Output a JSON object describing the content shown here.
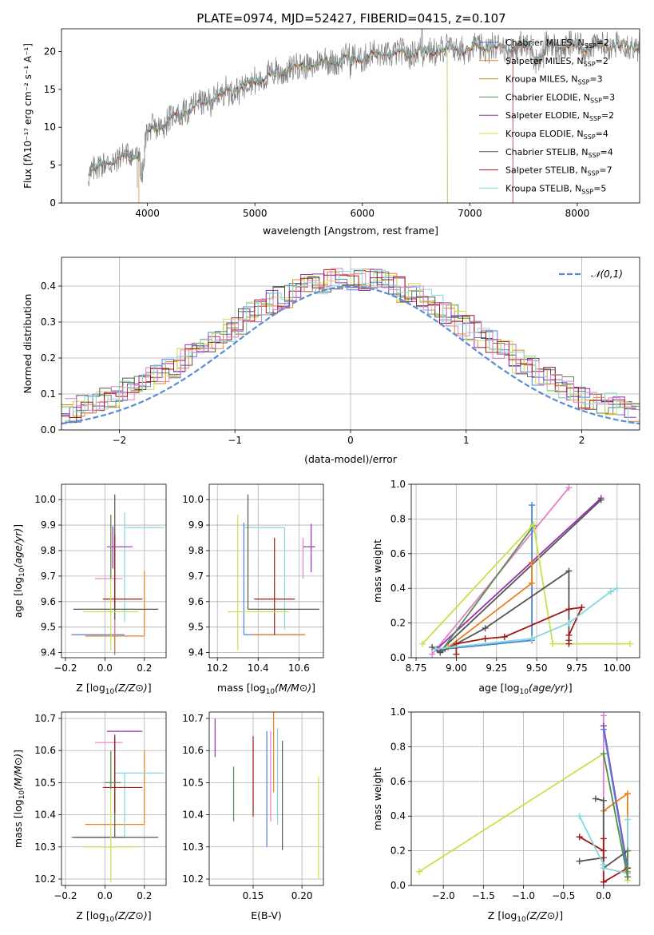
{
  "figure": {
    "title": "PLATE=0974, MJD=52427, FIBERID=0415, z=0.107"
  },
  "colors": {
    "MILES_Chabrier": "#4f81d8",
    "MILES_Salpeter": "#e8821e",
    "MILES_Kroupa": "#e8821e",
    "ELODIE_Chabrier": "#5a8a55",
    "ELODIE_Salpeter": "#9a2fb0",
    "ELODIE_Kroupa": "#c9e04a",
    "STELIB_Chabrier": "#555555",
    "STELIB_Salpeter": "#a01818",
    "STELIB_Kroupa": "#85d8dc",
    "extra_pink": "#e080c8",
    "normal_curve": "#5b8bd8"
  },
  "chart_data": [
    {
      "id": "spectrum",
      "type": "line",
      "xlabel": "wavelength [Angstrom, rest frame]",
      "ylabel": "Flux [fλ10⁻¹⁷ erg cm⁻² s⁻¹ A⁻¹]",
      "xlim": [
        3200,
        8580
      ],
      "ylim": [
        0,
        23
      ],
      "xticks": [
        4000,
        5000,
        6000,
        7000,
        8000
      ],
      "yticks": [
        0,
        5,
        10,
        15,
        20
      ],
      "legend_position": "top-right",
      "continuum_x": [
        3450,
        3600,
        3800,
        3950,
        4000,
        4200,
        4400,
        4600,
        4800,
        5000,
        5200,
        5400,
        5600,
        5800,
        6000,
        6200,
        6400,
        6600,
        6800,
        7000,
        7200,
        7400,
        7600,
        7800,
        8000,
        8200,
        8400,
        8580
      ],
      "continuum_y": [
        3.8,
        5.2,
        6.2,
        6.8,
        9.3,
        11.0,
        12.5,
        13.8,
        14.9,
        16.2,
        17.2,
        17.9,
        18.5,
        18.9,
        19.2,
        19.6,
        19.9,
        20.1,
        20.3,
        20.4,
        20.5,
        20.5,
        20.6,
        20.6,
        20.7,
        20.7,
        20.8,
        20.8
      ],
      "series": [
        {
          "name": "Chabrier MILES, N_SSP=2",
          "label_main": "Chabrier MILES, N",
          "label_sub": "SSP",
          "label_end": "=2",
          "color": "#4f81d8"
        },
        {
          "name": "Salpeter MILES, N_SSP=2",
          "label_main": "Salpeter MILES, N",
          "label_sub": "SSP",
          "label_end": "=2",
          "color": "#e8821e"
        },
        {
          "name": "Kroupa MILES, N_SSP=3",
          "label_main": "Kroupa MILES, N",
          "label_sub": "SSP",
          "label_end": "=3",
          "color": "#c88a2e"
        },
        {
          "name": "Chabrier ELODIE, N_SSP=3",
          "label_main": "Chabrier ELODIE, N",
          "label_sub": "SSP",
          "label_end": "=3",
          "color": "#5a8a55"
        },
        {
          "name": "Salpeter ELODIE, N_SSP=2",
          "label_main": "Salpeter ELODIE, N",
          "label_sub": "SSP",
          "label_end": "=2",
          "color": "#9a2fb0"
        },
        {
          "name": "Kroupa ELODIE, N_SSP=4",
          "label_main": "Kroupa ELODIE, N",
          "label_sub": "SSP",
          "label_end": "=4",
          "color": "#c9e04a"
        },
        {
          "name": "Chabrier STELIB, N_SSP=4",
          "label_main": "Chabrier STELIB, N",
          "label_sub": "SSP",
          "label_end": "=4",
          "color": "#555555"
        },
        {
          "name": "Salpeter STELIB, N_SSP=7",
          "label_main": "Salpeter STELIB, N",
          "label_sub": "SSP",
          "label_end": "=7",
          "color": "#a01818"
        },
        {
          "name": "Kroupa STELIB, N_SSP=5",
          "label_main": "Kroupa STELIB, N",
          "label_sub": "SSP",
          "label_end": "=5",
          "color": "#85d8dc"
        }
      ]
    },
    {
      "id": "residuals",
      "type": "line",
      "xlabel": "(data-model)/error",
      "ylabel": "Normed distribution",
      "xlim": [
        -2.5,
        2.5
      ],
      "ylim": [
        0,
        0.48
      ],
      "xticks": [
        -2,
        -1,
        0,
        1,
        2
      ],
      "yticks": [
        0.0,
        0.1,
        0.2,
        0.3,
        0.4
      ],
      "grid": true,
      "legend_position": "top-right",
      "legend": [
        {
          "text": "𝒩(0,1)",
          "color": "#5b8bd8",
          "style": "dashed"
        }
      ],
      "bin_width": 0.1
    },
    {
      "id": "age_vs_Z",
      "type": "scatter",
      "xlabel": "Z [log10(Z/Z⊙)]",
      "ylabel": "age  [log10(age/yr)]",
      "xlim": [
        -0.22,
        0.31
      ],
      "ylim": [
        9.38,
        10.06
      ],
      "xticks": [
        -0.2,
        0.0,
        0.2
      ],
      "yticks": [
        9.4,
        9.5,
        9.6,
        9.7,
        9.8,
        9.9,
        10.0
      ],
      "grid": true,
      "points": [
        {
          "x": 0.05,
          "y": 9.47,
          "xerr": [
            0.22,
            0.05
          ],
          "yerr": [
            0.08,
            0.07
          ],
          "color": "#4f81d8"
        },
        {
          "x": 0.05,
          "y": 9.465,
          "xerr": [
            0.15,
            0.15
          ],
          "yerr": [
            0.06,
            0.06
          ],
          "color": "#e8821e"
        },
        {
          "x": 0.2,
          "y": 9.62,
          "xerr": [
            0.0,
            0.0
          ],
          "yerr": [
            0.155,
            0.1
          ],
          "color": "#e8821e"
        },
        {
          "x": 0.05,
          "y": 9.69,
          "xerr": [
            0.1,
            0.04
          ],
          "yerr": [
            0.22,
            0.2
          ],
          "color": "#e080c8"
        },
        {
          "x": 0.1,
          "y": 9.89,
          "xerr": [
            0.0,
            0.2
          ],
          "yerr": [
            0.37,
            0.06
          ],
          "color": "#85d8dc"
        },
        {
          "x": 0.05,
          "y": 9.57,
          "xerr": [
            0.21,
            0.22
          ],
          "yerr": [
            0.04,
            0.45
          ],
          "color": "#555555"
        },
        {
          "x": 0.05,
          "y": 9.61,
          "xerr": [
            0.06,
            0.14
          ],
          "yerr": [
            0.04,
            0.25
          ],
          "color": "#a01818"
        },
        {
          "x": 0.04,
          "y": 9.815,
          "xerr": [
            0.03,
            0.1
          ],
          "yerr": [
            0.085,
            0.08
          ],
          "color": "#9a2fb0"
        },
        {
          "x": 0.03,
          "y": 9.56,
          "xerr": [
            0.14,
            0.14
          ],
          "yerr": [
            0.15,
            0.38
          ],
          "color": "#c9e04a"
        },
        {
          "x": 0.03,
          "y": 9.74,
          "xerr": [
            0.0,
            0.0
          ],
          "yerr": [
            0.05,
            0.2
          ],
          "color": "#5a8a55"
        }
      ]
    },
    {
      "id": "age_vs_mass",
      "type": "scatter",
      "xlabel": "mass [log10(M/M⊙)]",
      "ylabel": "",
      "xlim": [
        10.16,
        10.72
      ],
      "ylim": [
        9.38,
        10.06
      ],
      "xticks": [
        10.2,
        10.4,
        10.6
      ],
      "yticks": [
        9.4,
        9.5,
        9.6,
        9.7,
        9.8,
        9.9,
        10.0
      ],
      "grid": true,
      "points": [
        {
          "x": 10.33,
          "y": 9.47,
          "xerr": [
            0.0,
            0.3
          ],
          "yerr": [
            0.0,
            0.44
          ],
          "color": "#4f81d8"
        },
        {
          "x": 10.5,
          "y": 9.47,
          "xerr": [
            0.13,
            0.13
          ],
          "yerr": [
            0.0,
            0.0
          ],
          "color": "#e8821e"
        },
        {
          "x": 10.53,
          "y": 9.89,
          "xerr": [
            0.2,
            0.0
          ],
          "yerr": [
            0.4,
            0.0
          ],
          "color": "#85d8dc"
        },
        {
          "x": 10.35,
          "y": 9.57,
          "xerr": [
            0.0,
            0.35
          ],
          "yerr": [
            0.0,
            0.45
          ],
          "color": "#555555"
        },
        {
          "x": 10.48,
          "y": 9.61,
          "xerr": [
            0.1,
            0.1
          ],
          "yerr": [
            0.14,
            0.24
          ],
          "color": "#a01818"
        },
        {
          "x": 10.66,
          "y": 9.815,
          "xerr": [
            0.04,
            0.02
          ],
          "yerr": [
            0.1,
            0.09
          ],
          "color": "#9a2fb0"
        },
        {
          "x": 10.3,
          "y": 9.56,
          "xerr": [
            0.05,
            0.25
          ],
          "yerr": [
            0.15,
            0.38
          ],
          "color": "#c9e04a"
        },
        {
          "x": 10.62,
          "y": 9.75,
          "xerr": [
            0.0,
            0.0
          ],
          "yerr": [
            0.06,
            0.1
          ],
          "color": "#e080c8"
        }
      ]
    },
    {
      "id": "mass_weight_vs_age",
      "type": "line",
      "xlabel": "age  [log10(age/yr)]",
      "ylabel": "mass weight",
      "xlim": [
        8.72,
        10.14
      ],
      "ylim": [
        0,
        1.0
      ],
      "xticks": [
        8.75,
        9.0,
        9.25,
        9.5,
        9.75,
        10.0
      ],
      "yticks": [
        0.0,
        0.2,
        0.4,
        0.6,
        0.8,
        1.0
      ],
      "grid": true,
      "series": [
        {
          "color": "#e080c8",
          "x": [
            8.85,
            9.7
          ],
          "y": [
            0.02,
            0.98
          ]
        },
        {
          "color": "#9a2fb0",
          "x": [
            8.88,
            9.9
          ],
          "y": [
            0.05,
            0.92
          ]
        },
        {
          "color": "#555555",
          "x": [
            8.9,
            9.9
          ],
          "y": [
            0.04,
            0.91
          ]
        },
        {
          "color": "#5a8a55",
          "x": [
            8.9,
            9.48
          ],
          "y": [
            0.03,
            0.76
          ]
        },
        {
          "color": "#4f81d8",
          "x": [
            8.93,
            9.47,
            9.47
          ],
          "y": [
            0.05,
            0.1,
            0.88
          ]
        },
        {
          "color": "#e8821e",
          "x": [
            8.95,
            9.47,
            9.47
          ],
          "y": [
            0.06,
            0.43,
            0.55
          ]
        },
        {
          "color": "#c9e04a",
          "x": [
            8.79,
            9.48,
            9.6,
            10.08
          ],
          "y": [
            0.08,
            0.77,
            0.08,
            0.08
          ]
        },
        {
          "color": "#555555",
          "x": [
            8.85,
            8.9,
            9.18,
            9.7,
            9.7
          ],
          "y": [
            0.06,
            0.03,
            0.17,
            0.5,
            0.1
          ]
        },
        {
          "color": "#a01818",
          "x": [
            9.0,
            9.0,
            9.18,
            9.3,
            9.7,
            9.78,
            9.7,
            9.7
          ],
          "y": [
            0.02,
            0.08,
            0.11,
            0.12,
            0.28,
            0.29,
            0.13,
            0.08
          ]
        },
        {
          "color": "#85d8dc",
          "x": [
            8.87,
            9.47,
            9.7,
            9.96,
            10.0
          ],
          "y": [
            0.05,
            0.11,
            0.2,
            0.38,
            0.4
          ]
        }
      ]
    },
    {
      "id": "mass_vs_Z",
      "type": "scatter",
      "xlabel": "Z [log10(Z/Z⊙)]",
      "ylabel": "mass [log10(M/M⊙)]",
      "xlim": [
        -0.22,
        0.31
      ],
      "ylim": [
        10.18,
        10.72
      ],
      "xticks": [
        -0.2,
        0.0,
        0.2
      ],
      "yticks": [
        10.2,
        10.3,
        10.4,
        10.5,
        10.6,
        10.7
      ],
      "grid": true,
      "points": [
        {
          "x": 0.05,
          "y": 10.33,
          "xerr": [
            0.22,
            0.05
          ],
          "yerr": [
            0.0,
            0.0
          ],
          "color": "#4f81d8"
        },
        {
          "x": 0.05,
          "y": 10.37,
          "xerr": [
            0.15,
            0.15
          ],
          "yerr": [
            0.0,
            0.0
          ],
          "color": "#e8821e"
        },
        {
          "x": 0.2,
          "y": 10.5,
          "xerr": [
            0.0,
            0.0
          ],
          "yerr": [
            0.13,
            0.1
          ],
          "color": "#e8821e"
        },
        {
          "x": 0.05,
          "y": 10.625,
          "xerr": [
            0.1,
            0.04
          ],
          "yerr": [
            0.0,
            0.0
          ],
          "color": "#e080c8"
        },
        {
          "x": 0.1,
          "y": 10.53,
          "xerr": [
            0.05,
            0.2
          ],
          "yerr": [
            0.2,
            0.0
          ],
          "color": "#85d8dc"
        },
        {
          "x": 0.05,
          "y": 10.33,
          "xerr": [
            0.21,
            0.22
          ],
          "yerr": [
            0.0,
            0.32
          ],
          "color": "#555555"
        },
        {
          "x": 0.05,
          "y": 10.485,
          "xerr": [
            0.06,
            0.14
          ],
          "yerr": [
            0.08,
            0.16
          ],
          "color": "#a01818"
        },
        {
          "x": 0.04,
          "y": 10.66,
          "xerr": [
            0.03,
            0.15
          ],
          "yerr": [
            0.0,
            0.0
          ],
          "color": "#9a2fb0"
        },
        {
          "x": 0.03,
          "y": 10.3,
          "xerr": [
            0.14,
            0.14
          ],
          "yerr": [
            0.11,
            0.3
          ],
          "color": "#c9e04a"
        },
        {
          "x": 0.03,
          "y": 10.5,
          "xerr": [
            0.03,
            0.05
          ],
          "yerr": [
            0.02,
            0.1
          ],
          "color": "#5a8a55"
        }
      ]
    },
    {
      "id": "mass_vs_ebv",
      "type": "scatter",
      "xlabel": "E(B-V)",
      "ylabel": "",
      "xlim": [
        0.105,
        0.222
      ],
      "ylim": [
        10.18,
        10.72
      ],
      "xticks": [
        0.15,
        0.2
      ],
      "yticks": [
        10.2,
        10.3,
        10.4,
        10.5,
        10.6,
        10.7
      ],
      "grid": true,
      "points": [
        {
          "x": 0.111,
          "y": 10.64,
          "yerr": [
            0.06,
            0.06
          ],
          "color": "#9a2fb0"
        },
        {
          "x": 0.13,
          "y": 10.465,
          "yerr": [
            0.085,
            0.085
          ],
          "color": "#5a8a55"
        },
        {
          "x": 0.15,
          "y": 10.52,
          "yerr": [
            0.125,
            0.125
          ],
          "color": "#a01818"
        },
        {
          "x": 0.164,
          "y": 10.48,
          "yerr": [
            0.18,
            0.18
          ],
          "color": "#4f81d8"
        },
        {
          "x": 0.168,
          "y": 10.52,
          "yerr": [
            0.14,
            0.14
          ],
          "color": "#e080c8"
        },
        {
          "x": 0.171,
          "y": 10.57,
          "yerr": [
            0.1,
            0.2
          ],
          "color": "#e8821e"
        },
        {
          "x": 0.175,
          "y": 10.52,
          "yerr": [
            0.15,
            0.15
          ],
          "color": "#85d8dc"
        },
        {
          "x": 0.18,
          "y": 10.46,
          "yerr": [
            0.17,
            0.17
          ],
          "color": "#555555"
        },
        {
          "x": 0.217,
          "y": 10.36,
          "yerr": [
            0.16,
            0.16
          ],
          "color": "#c9e04a"
        }
      ]
    },
    {
      "id": "mass_weight_vs_Z",
      "type": "line",
      "xlabel": "Z [log10(Z/Z⊙)]",
      "ylabel": "mass weight",
      "xlim": [
        -2.4,
        0.45
      ],
      "ylim": [
        0,
        1.0
      ],
      "xticks": [
        -2.0,
        -1.5,
        -1.0,
        -0.5,
        0.0
      ],
      "yticks": [
        0.0,
        0.2,
        0.4,
        0.6,
        0.8,
        1.0
      ],
      "grid": true,
      "series": [
        {
          "color": "#c9e04a",
          "x": [
            -2.3,
            0.0,
            0.3,
            0.3
          ],
          "y": [
            0.08,
            0.76,
            0.05,
            0.03
          ]
        },
        {
          "color": "#e080c8",
          "x": [
            0.0,
            0.0
          ],
          "y": [
            0.02,
            0.98
          ]
        },
        {
          "color": "#9a2fb0",
          "x": [
            0.0,
            0.3
          ],
          "y": [
            0.92,
            0.1
          ]
        },
        {
          "color": "#4f81d8",
          "x": [
            0.0,
            0.3
          ],
          "y": [
            0.9,
            0.08
          ]
        },
        {
          "color": "#e8821e",
          "x": [
            0.0,
            0.3,
            0.3
          ],
          "y": [
            0.43,
            0.53,
            0.08
          ]
        },
        {
          "color": "#555555",
          "x": [
            -0.1,
            0.0,
            0.0,
            0.3,
            0.3
          ],
          "y": [
            0.5,
            0.49,
            0.1,
            0.2,
            0.1
          ]
        },
        {
          "color": "#555555",
          "x": [
            -0.3,
            0.0
          ],
          "y": [
            0.14,
            0.16
          ]
        },
        {
          "color": "#a01818",
          "x": [
            -0.3,
            0.0,
            0.0,
            0.0,
            0.3,
            0.3
          ],
          "y": [
            0.28,
            0.2,
            0.27,
            0.02,
            0.1,
            0.05
          ]
        },
        {
          "color": "#85d8dc",
          "x": [
            -0.3,
            0.0,
            0.0,
            0.3,
            0.3
          ],
          "y": [
            0.4,
            0.12,
            0.1,
            0.07,
            0.38
          ]
        },
        {
          "color": "#5a8a55",
          "x": [
            0.0,
            0.3,
            0.3
          ],
          "y": [
            0.76,
            0.05,
            0.2
          ]
        }
      ]
    }
  ]
}
